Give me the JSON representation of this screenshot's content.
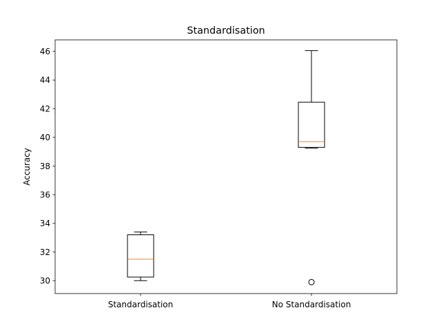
{
  "chart_data": {
    "type": "box",
    "title": "Standardisation",
    "xlabel": "",
    "ylabel": "Accuracy",
    "ylim": [
      29.1,
      46.8
    ],
    "yticks": [
      30,
      32,
      34,
      36,
      38,
      40,
      42,
      44,
      46
    ],
    "categories": [
      "Standardisation",
      "No Standardisation"
    ],
    "boxes": [
      {
        "name": "Standardisation",
        "whisker_low": 30.0,
        "q1": 30.25,
        "median": 31.5,
        "q3": 33.2,
        "whisker_high": 33.4,
        "outliers": []
      },
      {
        "name": "No Standardisation",
        "whisker_low": 39.25,
        "q1": 39.3,
        "median": 39.7,
        "q3": 42.45,
        "whisker_high": 46.05,
        "outliers": [
          29.9
        ]
      }
    ],
    "grid": false,
    "colors": {
      "box": "#000000",
      "median": "#ff7f0e",
      "outlier": "#000000"
    }
  }
}
